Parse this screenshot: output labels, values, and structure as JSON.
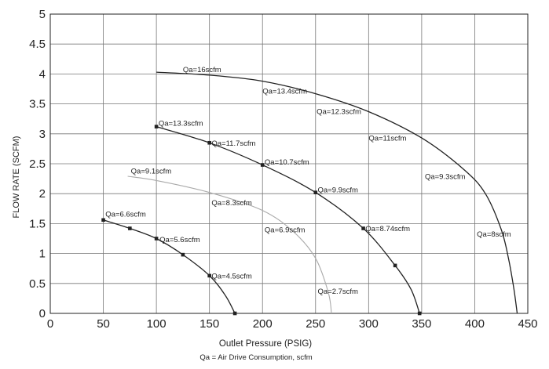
{
  "chart_data": {
    "type": "line",
    "xlabel": "Outlet Pressure (PSIG)",
    "ylabel": "FLOW RATE (SCFM)",
    "subtitle": "Qa = Air Drive Consumption, scfm",
    "xlim": [
      0,
      450
    ],
    "ylim": [
      0,
      5
    ],
    "xticks": [
      0,
      50,
      100,
      150,
      200,
      250,
      300,
      350,
      400,
      450
    ],
    "yticks": [
      0,
      0.5,
      1,
      1.5,
      2,
      2.5,
      3,
      3.5,
      4,
      4.5,
      5
    ],
    "ytick_labels": [
      "0",
      "0.5",
      "1",
      "1.5",
      "2",
      "2.5",
      "3",
      "3.5",
      "4",
      "4.5",
      "5"
    ],
    "grid": true,
    "colors": {
      "line": "#222222",
      "grid": "#777777",
      "faint": "#aaaaaa"
    },
    "series": [
      {
        "points": [
          [
            100,
            4.03
          ],
          [
            150,
            3.98
          ],
          [
            200,
            3.88
          ],
          [
            250,
            3.67
          ],
          [
            300,
            3.37
          ],
          [
            350,
            2.93
          ],
          [
            390,
            2.4
          ],
          [
            410,
            2.0
          ],
          [
            425,
            1.4
          ],
          [
            432,
            0.9
          ],
          [
            437,
            0.4
          ],
          [
            440,
            0
          ]
        ],
        "markers": []
      },
      {
        "points": [
          [
            100,
            3.12
          ],
          [
            150,
            2.85
          ],
          [
            200,
            2.48
          ],
          [
            250,
            2.02
          ],
          [
            295,
            1.42
          ],
          [
            325,
            0.8
          ],
          [
            340,
            0.4
          ],
          [
            348,
            0
          ]
        ],
        "markers": [
          [
            100,
            3.12
          ],
          [
            150,
            2.85
          ],
          [
            200,
            2.48
          ],
          [
            250,
            2.02
          ],
          [
            295,
            1.42
          ],
          [
            325,
            0.8
          ],
          [
            348,
            0
          ]
        ]
      },
      {
        "points": [
          [
            73,
            2.29
          ],
          [
            100,
            2.22
          ],
          [
            150,
            2.02
          ],
          [
            200,
            1.72
          ],
          [
            230,
            1.35
          ],
          [
            250,
            0.92
          ],
          [
            262,
            0.35
          ],
          [
            265,
            0
          ]
        ],
        "markers": [],
        "faint": true
      },
      {
        "points": [
          [
            50,
            1.56
          ],
          [
            75,
            1.42
          ],
          [
            100,
            1.25
          ],
          [
            125,
            0.98
          ],
          [
            150,
            0.63
          ],
          [
            165,
            0.3
          ],
          [
            174,
            0
          ]
        ],
        "markers": [
          [
            50,
            1.56
          ],
          [
            75,
            1.42
          ],
          [
            100,
            1.25
          ],
          [
            125,
            0.98
          ],
          [
            150,
            0.63
          ],
          [
            174,
            0
          ]
        ]
      }
    ],
    "annotations": [
      {
        "text": "Qa=16scfm",
        "x": 125,
        "y": 4.08
      },
      {
        "text": "Qa=13.4scfm",
        "x": 200,
        "y": 3.72
      },
      {
        "text": "Qa=12.3scfm",
        "x": 251,
        "y": 3.38
      },
      {
        "text": "Qa=11scfm",
        "x": 300,
        "y": 2.93
      },
      {
        "text": "Qa=9.3scfm",
        "x": 353,
        "y": 2.29
      },
      {
        "text": "Qa=8scfm",
        "x": 402,
        "y": 1.33
      },
      {
        "text": "Qa=13.3scfm",
        "x": 102,
        "y": 3.18
      },
      {
        "text": "Qa=11.7scfm",
        "x": 152,
        "y": 2.85
      },
      {
        "text": "Qa=10.7scfm",
        "x": 202,
        "y": 2.53
      },
      {
        "text": "Qa=9.9scfm",
        "x": 252,
        "y": 2.07
      },
      {
        "text": "Qa=8.74scfm",
        "x": 297,
        "y": 1.42
      },
      {
        "text": "Qa=9.1scfm",
        "x": 76,
        "y": 2.38
      },
      {
        "text": "Qa=8.3scfm",
        "x": 152,
        "y": 1.85
      },
      {
        "text": "Qa=6.9scfm",
        "x": 202,
        "y": 1.4
      },
      {
        "text": "Qa=2.7scfm",
        "x": 252,
        "y": 0.37
      },
      {
        "text": "Qa=6.6scfm",
        "x": 52,
        "y": 1.66
      },
      {
        "text": "Qa=5.6scfm",
        "x": 103,
        "y": 1.24
      },
      {
        "text": "Qa=4.5scfm",
        "x": 152,
        "y": 0.63
      }
    ]
  }
}
